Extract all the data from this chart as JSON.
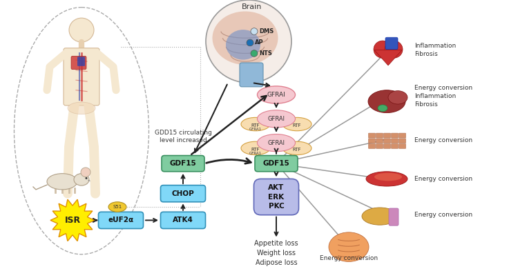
{
  "bg_color": "#ffffff",
  "brain_label": "Brain",
  "brain_regions": [
    "DMS",
    "AP",
    "NTS"
  ],
  "brain_region_colors": [
    "#c8e8f5",
    "#1a6fb5",
    "#3aaa6e"
  ],
  "gfral_color": "#f5c8d0",
  "gfral_border": "#e08090",
  "rtf_color": "#f8ddb0",
  "rtf_border": "#d4a040",
  "gdf15_box_color": "#80cca0",
  "gdf15_box_border": "#3a9060",
  "chop_color": "#80d8f8",
  "chop_border": "#3090b8",
  "atk4_color": "#80d8f8",
  "atk4_border": "#3090b8",
  "euf2a_color": "#80d8f8",
  "euf2a_border": "#3090b8",
  "s51_color": "#f0c830",
  "s51_border": "#b09020",
  "akt_box_color": "#b8bce8",
  "akt_box_border": "#6068b8",
  "isr_color": "#ffee00",
  "isr_border": "#e09000",
  "arrow_color": "#222222",
  "gray_line_color": "#999999"
}
